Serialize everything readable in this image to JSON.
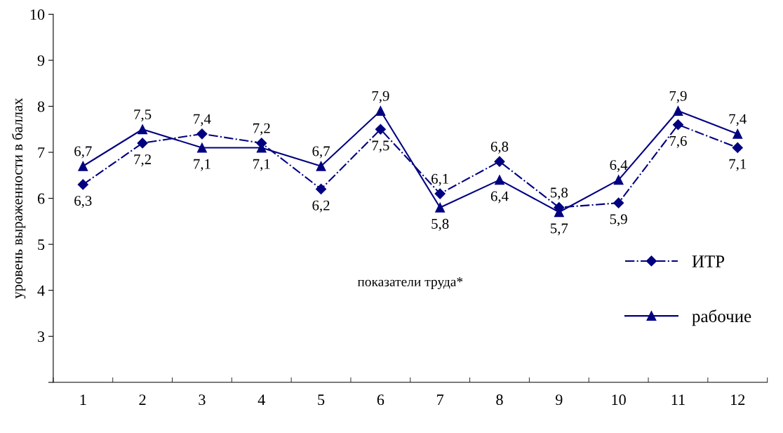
{
  "chart_data": {
    "type": "line",
    "ylabel": "уровень выраженности в баллах",
    "categories": [
      "1",
      "2",
      "3",
      "4",
      "5",
      "6",
      "7",
      "8",
      "9",
      "10",
      "11",
      "12"
    ],
    "series": [
      {
        "name": "ИТР",
        "color": "#000080",
        "marker": "diamond",
        "line_style": "dashdot",
        "values": [
          6.3,
          7.2,
          7.4,
          7.2,
          6.2,
          7.5,
          6.1,
          6.8,
          5.8,
          5.9,
          7.6,
          7.1
        ],
        "value_labels": [
          "6,3",
          "7,2",
          "7,4",
          "7,2",
          "6,2",
          "7,5",
          "6,1",
          "6,8",
          "5,8",
          "5,9",
          "7,6",
          "7,1"
        ]
      },
      {
        "name": "рабочие",
        "color": "#000080",
        "marker": "triangle",
        "line_style": "solid",
        "values": [
          6.7,
          7.5,
          7.1,
          7.1,
          6.7,
          7.9,
          5.8,
          6.4,
          5.7,
          6.4,
          7.9,
          7.4
        ],
        "value_labels": [
          "6,7",
          "7,5",
          "7,1",
          "7,1",
          "6,7",
          "7,9",
          "5,8",
          "6,4",
          "5,7",
          "6,4",
          "7,9",
          "7,4"
        ]
      }
    ],
    "ylim": [
      2,
      10
    ],
    "yticks": [
      {
        "value": 2,
        "label": null
      },
      3,
      4,
      5,
      6,
      7,
      8,
      9,
      10
    ],
    "grid": false,
    "legend": "right",
    "annotations": [
      "показатели труда*"
    ]
  }
}
